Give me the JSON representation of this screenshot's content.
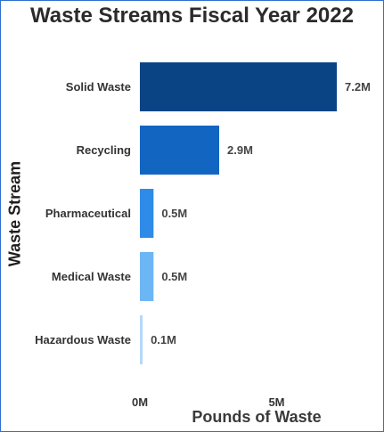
{
  "chart_data": {
    "type": "bar",
    "orientation": "horizontal",
    "title": "Waste Streams Fiscal Year 2022",
    "xlabel": "Pounds of Waste",
    "ylabel": "Waste Stream",
    "categories": [
      "Solid Waste",
      "Recycling",
      "Pharmaceutical",
      "Medical Waste",
      "Hazardous Waste"
    ],
    "values": [
      7.2,
      2.9,
      0.5,
      0.5,
      0.1
    ],
    "data_labels": [
      "7.2M",
      "2.9M",
      "0.5M",
      "0.5M",
      "0.1M"
    ],
    "colors": [
      "#0b4485",
      "#1266c2",
      "#2f8be8",
      "#6cb6f5",
      "#b5d8f9"
    ],
    "x_ticks": [
      {
        "value": 0,
        "label": "0M"
      },
      {
        "value": 5,
        "label": "5M"
      }
    ],
    "xlim": [
      0,
      7.2
    ],
    "grid": false,
    "legend": "none"
  }
}
